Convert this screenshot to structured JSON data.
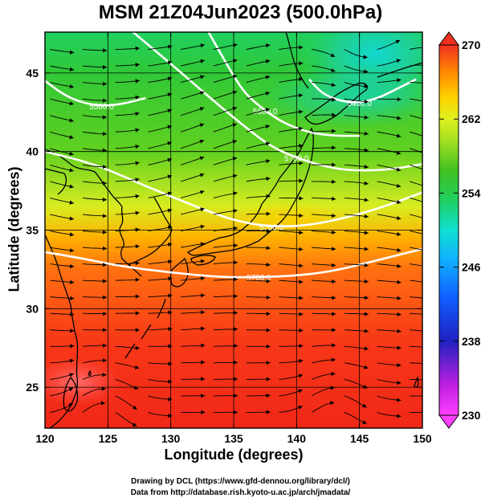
{
  "title": "MSM 21Z04Jun2023 (500.0hPa)",
  "credits": {
    "line1": "Drawing by DCL (https://www.gfd-dennou.org/library/dcl/)",
    "line2": "Data from http://database.rish.kyoto-u.ac.jp/arch/jmadata/"
  },
  "chart_data": {
    "type": "heatmap",
    "title": "MSM 21Z04Jun2023 (500.0hPa)",
    "xlabel": "Longitude (degrees)",
    "ylabel": "Latitude  (degrees)",
    "xlim": [
      120,
      150
    ],
    "ylim": [
      22.4,
      47.6
    ],
    "x_ticks": [
      "120",
      "125",
      "130",
      "135",
      "140",
      "145",
      "150"
    ],
    "y_ticks": [
      "25",
      "30",
      "35",
      "40",
      "45"
    ],
    "colorbar": {
      "range": [
        230,
        270
      ],
      "ticks": [
        "270",
        "262",
        "254",
        "246",
        "238",
        "230"
      ],
      "colors": [
        "#ff40ff",
        "#c020e0",
        "#2020c0",
        "#1060ff",
        "#10b0ff",
        "#10e0d0",
        "#20d060",
        "#40c020",
        "#a0e020",
        "#e0f020",
        "#ffd000",
        "#ff9000",
        "#ff5010",
        "#f03020"
      ]
    },
    "contours": [
      {
        "label": "5700.0",
        "lon": [
          120,
          123,
          126,
          130,
          134,
          137,
          140,
          143,
          146,
          150
        ],
        "lat": [
          33.6,
          33.2,
          32.7,
          32.3,
          32.0,
          32.0,
          32.1,
          32.4,
          33.0,
          33.8
        ]
      },
      {
        "label": "5760.0",
        "lon": [
          120,
          124,
          128,
          132,
          135,
          138,
          141,
          144,
          147,
          150
        ],
        "lat": [
          40.0,
          39.2,
          37.8,
          36.5,
          35.6,
          35.2,
          35.3,
          35.8,
          36.5,
          37.4
        ]
      },
      {
        "label": "5700.0",
        "lon": [
          127,
          130,
          133,
          136,
          138,
          140,
          142,
          144,
          147,
          150
        ],
        "lat": [
          47.6,
          45.6,
          43.5,
          41.5,
          40.3,
          39.6,
          39.1,
          38.8,
          38.8,
          39.2
        ]
      },
      {
        "label": "5600.0",
        "lon": [
          133,
          134,
          135,
          136,
          137.5,
          139,
          141,
          143,
          145
        ],
        "lat": [
          47.6,
          46.2,
          44.8,
          43.6,
          42.6,
          41.8,
          41.2,
          41.0,
          41.0
        ]
      },
      {
        "label": "5500.0",
        "lon": [
          120,
          121.5,
          123,
          124.5,
          126,
          128
        ],
        "lat": [
          44.5,
          43.6,
          43.1,
          42.9,
          43.0,
          43.4
        ]
      },
      {
        "label": "5400.0",
        "lon": [
          141,
          142,
          143.5,
          145,
          146.5,
          148,
          149.5
        ],
        "lat": [
          44.6,
          43.7,
          43.2,
          43.1,
          43.4,
          44.0,
          44.6
        ]
      }
    ]
  }
}
